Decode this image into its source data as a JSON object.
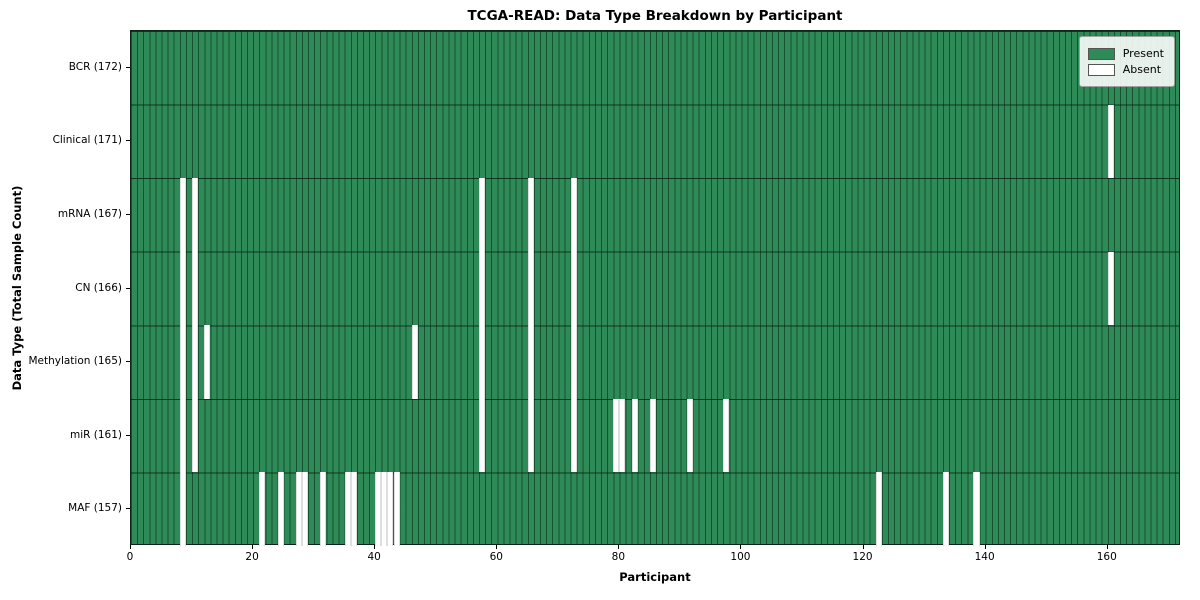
{
  "chart_data": {
    "type": "heatmap",
    "title": "TCGA-READ: Data Type Breakdown by Participant",
    "xlabel": "Participant",
    "ylabel": "Data Type (Total Sample Count)",
    "n_participants": 172,
    "x_ticks": [
      0,
      20,
      40,
      60,
      80,
      100,
      120,
      140,
      160
    ],
    "legend": [
      {
        "label": "Present",
        "color": "#2e8b57"
      },
      {
        "label": "Absent",
        "color": "#ffffff"
      }
    ],
    "legend_position": "upper right",
    "grid": "per-participant column lines and row separator lines",
    "colors": {
      "present": "#2e8b57",
      "absent": "#ffffff",
      "column_grid": "#1d5c38",
      "row_separator": "#0d2417"
    },
    "rows": [
      {
        "label": "BCR (172)",
        "name": "BCR",
        "count": 172,
        "absent_participants": []
      },
      {
        "label": "Clinical (171)",
        "name": "Clinical",
        "count": 171,
        "absent_participants": [
          160
        ]
      },
      {
        "label": "mRNA (167)",
        "name": "mRNA",
        "count": 167,
        "absent_participants": [
          8,
          10,
          57,
          65,
          72
        ]
      },
      {
        "label": "CN (166)",
        "name": "CN",
        "count": 166,
        "absent_participants": [
          8,
          10,
          57,
          65,
          72,
          160
        ]
      },
      {
        "label": "Methylation (165)",
        "name": "Methylation",
        "count": 165,
        "absent_participants": [
          8,
          10,
          12,
          46,
          57,
          65,
          72
        ]
      },
      {
        "label": "miR (161)",
        "name": "miR",
        "count": 161,
        "absent_participants": [
          8,
          10,
          57,
          65,
          72,
          79,
          80,
          82,
          85,
          91,
          97
        ]
      },
      {
        "label": "MAF (157)",
        "name": "MAF",
        "count": 157,
        "absent_participants": [
          8,
          21,
          24,
          27,
          28,
          31,
          35,
          36,
          40,
          41,
          42,
          43,
          122,
          133,
          138
        ]
      }
    ]
  }
}
